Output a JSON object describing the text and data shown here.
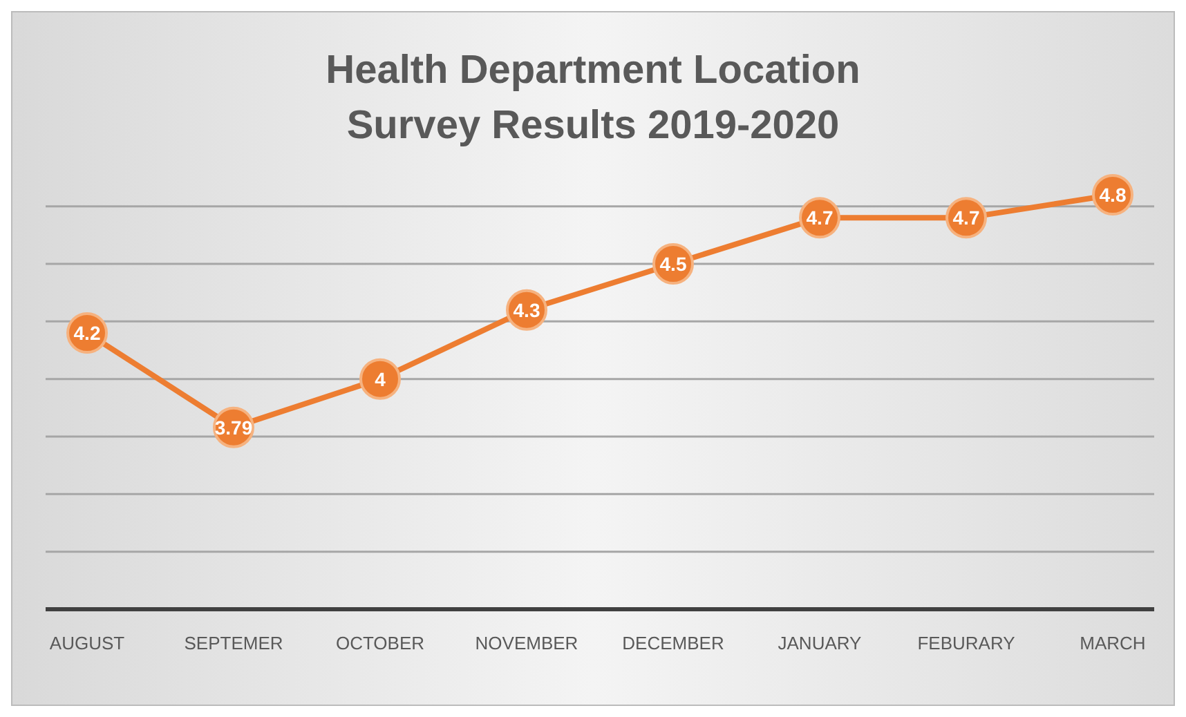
{
  "chart_data": {
    "type": "line",
    "title": "Health Department Location Survey Results 2019-2020",
    "categories": [
      "AUGUST",
      "SEPTEMER",
      "OCTOBER",
      "NOVEMBER",
      "DECEMBER",
      "JANUARY",
      "FEBURARY",
      "MARCH"
    ],
    "series": [
      {
        "color": "#ed7d31",
        "values": [
          4.2,
          3.79,
          4,
          4.3,
          4.5,
          4.7,
          4.7,
          4.8
        ]
      }
    ],
    "yticks": [
      {
        "value": 3,
        "label": null
      },
      {
        "value": 3.25,
        "label": null
      },
      {
        "value": 3.5,
        "label": null
      },
      {
        "value": 3.75,
        "label": null
      },
      {
        "value": 4,
        "label": null
      },
      {
        "value": 4.25,
        "label": null
      },
      {
        "value": 4.5,
        "label": null
      },
      {
        "value": 4.75,
        "label": null
      }
    ],
    "tick_labels": "x",
    "grid": "y",
    "data_labels": true,
    "marker": "circle",
    "line_style": "solid",
    "legend": false
  }
}
